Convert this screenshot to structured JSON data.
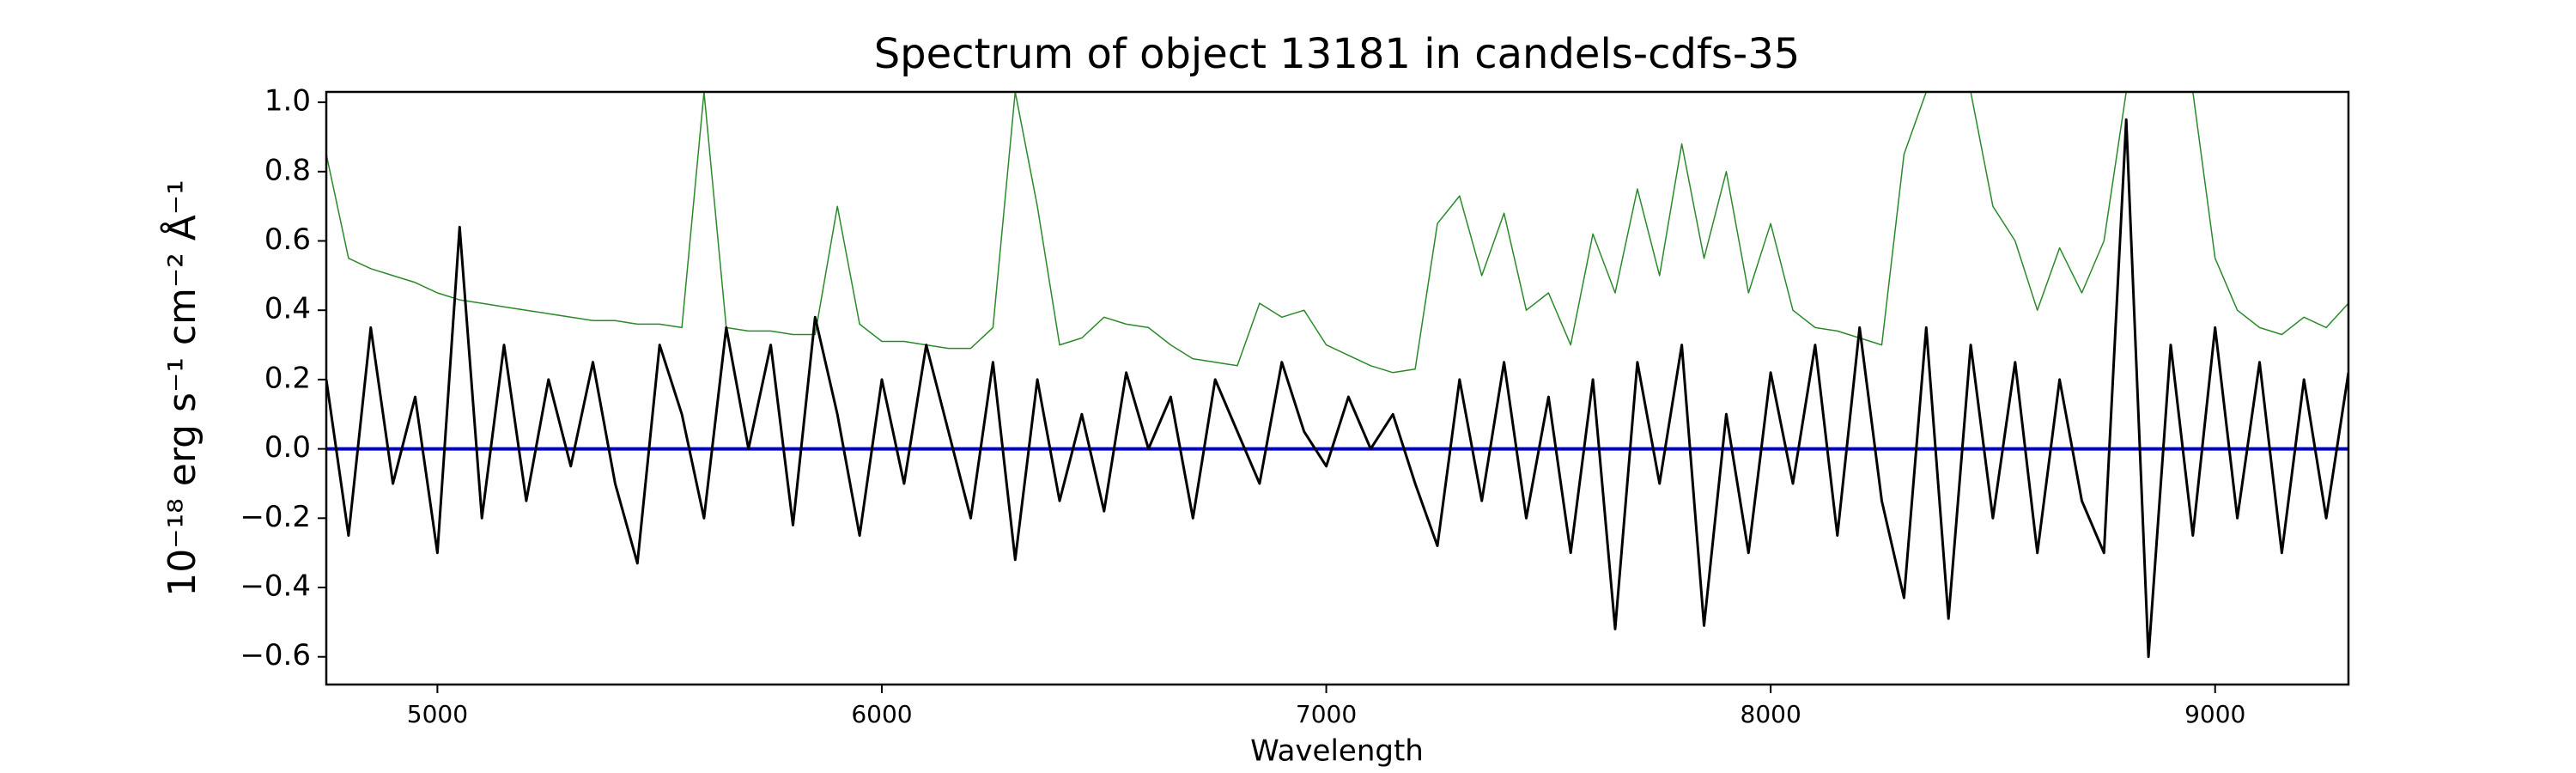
{
  "chart_data": {
    "type": "line",
    "title": "Spectrum of object 13181 in candels-cdfs-35",
    "xlabel": "Wavelength",
    "ylabel": "10⁻¹⁸ erg s⁻¹ cm⁻² Å⁻¹",
    "x": [
      4750,
      4800,
      4850,
      4900,
      4950,
      5000,
      5050,
      5100,
      5150,
      5200,
      5250,
      5300,
      5350,
      5400,
      5450,
      5500,
      5550,
      5600,
      5650,
      5700,
      5750,
      5800,
      5850,
      5900,
      5950,
      6000,
      6050,
      6100,
      6150,
      6200,
      6250,
      6300,
      6350,
      6400,
      6450,
      6500,
      6550,
      6600,
      6650,
      6700,
      6750,
      6800,
      6850,
      6900,
      6950,
      7000,
      7050,
      7100,
      7150,
      7200,
      7250,
      7300,
      7350,
      7400,
      7450,
      7500,
      7550,
      7600,
      7650,
      7700,
      7750,
      7800,
      7850,
      7900,
      7950,
      8000,
      8050,
      8100,
      8150,
      8200,
      8250,
      8300,
      8350,
      8400,
      8450,
      8500,
      8550,
      8600,
      8650,
      8700,
      8750,
      8800,
      8850,
      8900,
      8950,
      9000,
      9050,
      9100,
      9150,
      9200,
      9250,
      9300
    ],
    "series": [
      {
        "color": "#2a8a2a",
        "values": [
          0.85,
          0.55,
          0.52,
          0.5,
          0.48,
          0.45,
          0.43,
          0.42,
          0.41,
          0.4,
          0.39,
          0.38,
          0.37,
          0.37,
          0.36,
          0.36,
          0.35,
          1.03,
          0.35,
          0.34,
          0.34,
          0.33,
          0.33,
          0.7,
          0.36,
          0.31,
          0.31,
          0.3,
          0.29,
          0.29,
          0.35,
          1.03,
          0.7,
          0.3,
          0.32,
          0.38,
          0.36,
          0.35,
          0.3,
          0.26,
          0.25,
          0.24,
          0.42,
          0.38,
          0.4,
          0.3,
          0.27,
          0.24,
          0.22,
          0.23,
          0.65,
          0.73,
          0.5,
          0.68,
          0.4,
          0.45,
          0.3,
          0.62,
          0.45,
          0.75,
          0.5,
          0.88,
          0.55,
          0.8,
          0.45,
          0.65,
          0.4,
          0.35,
          0.34,
          0.32,
          0.3,
          0.85,
          1.03,
          1.03,
          1.03,
          0.7,
          0.6,
          0.4,
          0.58,
          0.45,
          0.6,
          1.03,
          1.03,
          1.03,
          1.03,
          0.55,
          0.4,
          0.35,
          0.33,
          0.38,
          0.35,
          0.42
        ]
      },
      {
        "color": "#0000cc",
        "values": [
          0,
          0,
          0,
          0,
          0,
          0,
          0,
          0,
          0,
          0,
          0,
          0,
          0,
          0,
          0,
          0,
          0,
          0,
          0,
          0,
          0,
          0,
          0,
          0,
          0,
          0,
          0,
          0,
          0,
          0,
          0,
          0,
          0,
          0,
          0,
          0,
          0,
          0,
          0,
          0,
          0,
          0,
          0,
          0,
          0,
          0,
          0,
          0,
          0,
          0,
          0,
          0,
          0,
          0,
          0,
          0,
          0,
          0,
          0,
          0,
          0,
          0,
          0,
          0,
          0,
          0,
          0,
          0,
          0,
          0,
          0,
          0,
          0,
          0,
          0,
          0,
          0,
          0,
          0,
          0,
          0,
          0,
          0,
          0,
          0,
          0,
          0,
          0,
          0,
          0,
          0,
          0
        ]
      },
      {
        "color": "#000000",
        "values": [
          0.2,
          -0.25,
          0.35,
          -0.1,
          0.15,
          -0.3,
          0.64,
          -0.2,
          0.3,
          -0.15,
          0.2,
          -0.05,
          0.25,
          -0.1,
          -0.33,
          0.3,
          0.1,
          -0.2,
          0.35,
          0.0,
          0.3,
          -0.22,
          0.38,
          0.1,
          -0.25,
          0.2,
          -0.1,
          0.3,
          0.05,
          -0.2,
          0.25,
          -0.32,
          0.2,
          -0.15,
          0.1,
          -0.18,
          0.22,
          0.0,
          0.15,
          -0.2,
          0.2,
          0.05,
          -0.1,
          0.25,
          0.05,
          -0.05,
          0.15,
          0.0,
          0.1,
          -0.1,
          -0.28,
          0.2,
          -0.15,
          0.25,
          -0.2,
          0.15,
          -0.3,
          0.2,
          -0.52,
          0.25,
          -0.1,
          0.3,
          -0.51,
          0.1,
          -0.3,
          0.22,
          -0.1,
          0.3,
          -0.25,
          0.35,
          -0.15,
          -0.43,
          0.35,
          -0.49,
          0.3,
          -0.2,
          0.25,
          -0.3,
          0.2,
          -0.15,
          -0.3,
          0.95,
          -0.6,
          0.3,
          -0.25,
          0.35,
          -0.2,
          0.25,
          -0.3,
          0.2,
          -0.2,
          0.22
        ]
      }
    ],
    "widths": [
      1.5,
      4,
      3
    ],
    "xlim": [
      4750,
      9300
    ],
    "ylim": [
      -0.68,
      1.03
    ],
    "xticks": [
      5000,
      6000,
      7000,
      8000,
      9000
    ],
    "yticks": [
      {
        "value": -0.6,
        "label": "−0.6"
      },
      {
        "value": -0.4,
        "label": "−0.4"
      },
      {
        "value": -0.2,
        "label": "−0.2"
      },
      {
        "value": 0.0,
        "label": "0.0"
      },
      0.2,
      0.4,
      0.6,
      0.8,
      {
        "value": 1.0,
        "label": "1.0"
      }
    ],
    "grid": false
  }
}
